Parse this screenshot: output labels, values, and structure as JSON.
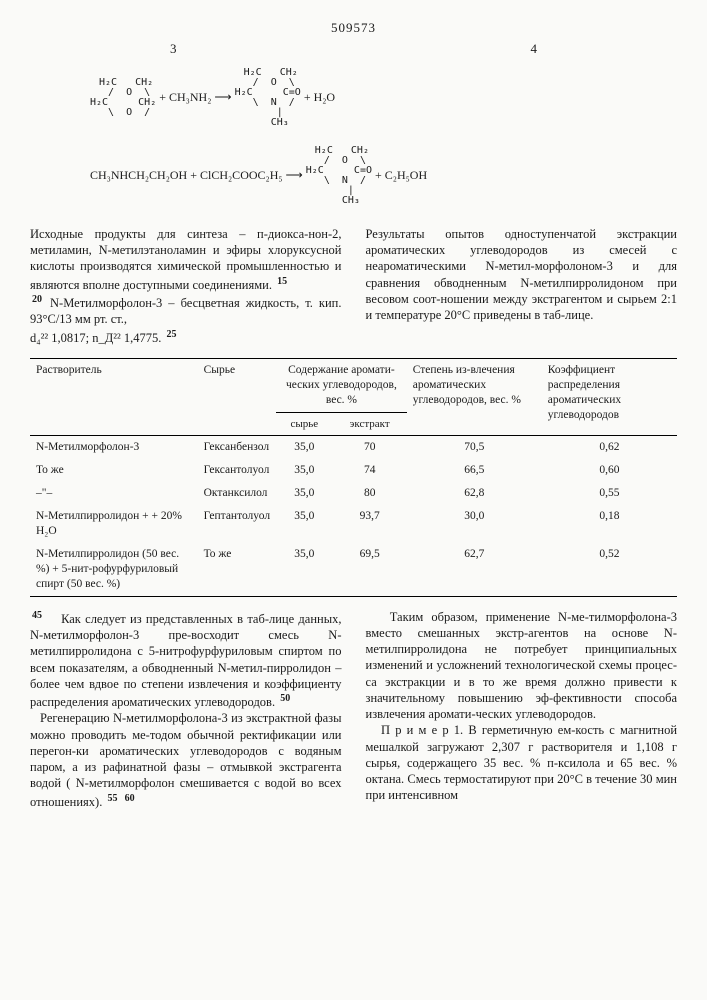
{
  "header": {
    "doc_number": "509573",
    "page_left": "3",
    "page_right": "4"
  },
  "reactions": {
    "reaction1": {
      "ring1": " H₂C   CH₂\n  /  O  \\\nH₂C     CH₂\n  \\  O  /",
      "plus1": " + CH₃NH₂ ⟶ ",
      "ring2": " H₂C   CH₂\n  /  O  \\\nH₂C     C=O\n  \\  N  /\n    |\n    CH₃",
      "plus2": " + H₂O"
    },
    "reaction2": {
      "left": "CH₃NHCH₂CH₂OH + ClCH₂COOC₂H₅ ⟶ ",
      "ring": " H₂C   CH₂\n  /  O  \\\nH₂C     C=O\n  \\  N  /\n    |\n    CH₃",
      "right": " + C₂H₅OH"
    }
  },
  "text_left_top": "Исходные продукты для синтеза – п-диокса-нон-2, метиламин, N-метилэтаноламин и эфиры хлоруксусной кислоты производятся химической промышленностью и являются вполне доступными соединениями.",
  "text_left_top2": "N-Метилморфолон-3 – бесцветная жидкость, т. кип. 93°C/13 мм рт. ст.,",
  "formula_d": "d₄²² 1,0817; ",
  "formula_n": "n_Д²² 1,4775.",
  "text_right_top": "Результаты опытов одноступенчатой экстракции ароматических углеводородов из смесей с неароматическими N-метил-морфолоном-3 и для сравнения обводненным N-метилпирролидоном при весовом соот-ношении между экстрагентом и сырьем 2:1 и температуре 20°C приведены в таб-лице.",
  "line15": "15",
  "line20": "20",
  "line25": "25",
  "table": {
    "headers": {
      "solvent": "Растворитель",
      "raw": "Сырье",
      "content": "Содержание аромати-ческих углеводородов, вес. %",
      "extraction": "Степень из-влечения ароматических углеводородов, вес. %",
      "coeff": "Коэффициент распределения ароматических углеводородов",
      "sub_raw": "сырье",
      "sub_extract": "экстракт"
    },
    "rows": [
      {
        "solvent": "N-Метилморфолон-3",
        "raw": "Гексанбензол",
        "c1": "35,0",
        "c2": "70",
        "c3": "70,5",
        "c4": "0,62"
      },
      {
        "solvent": "То же",
        "raw": "Гексантолуол",
        "c1": "35,0",
        "c2": "74",
        "c3": "66,5",
        "c4": "0,60"
      },
      {
        "solvent": "–\"–",
        "raw": "Октанксилол",
        "c1": "35,0",
        "c2": "80",
        "c3": "62,8",
        "c4": "0,55"
      },
      {
        "solvent": "N-Метилпирролидон + + 20% H₂O",
        "raw": "Гептантолуол",
        "c1": "35,0",
        "c2": "93,7",
        "c3": "30,0",
        "c4": "0,18"
      },
      {
        "solvent": "N-Метилпирролидон (50 вес. %) + 5-нит-рофурфуриловый спирт (50 вес. %)",
        "raw": "То же",
        "c1": "35,0",
        "c2": "69,5",
        "c3": "62,7",
        "c4": "0,52"
      }
    ]
  },
  "line45": "45",
  "line50": "50",
  "line55": "55",
  "line60": "60",
  "text_left_bottom1": "Как следует из представленных в таб-лице данных, N-метилморфолон-3 пре-восходит смесь N-метилпирролидона с 5-нитрофурфуриловым спиртом по всем показателям, а обводненный N-метил-пирролидон – более чем вдвое по степени извлечения и коэффициенту распределения ароматических углеводородов.",
  "text_left_bottom2": "Регенерацию N-метилморфолона-3 из экстрактной фазы можно проводить ме-тодом обычной ректификации или перегон-ки ароматических углеводородов с водяным паром, а из рафинатной фазы – отмывкой экстрагента водой ( N-метилморфолон смешивается с водой во всех отношениях).",
  "text_right_bottom1": "Таким образом, применение N-ме-тилморфолона-3 вместо смешанных экстр-агентов на основе N-метилпирролидона не потребует принципиальных изменений и усложнений технологической схемы процес-са экстракции и в то же время должно привести к значительному повышению эф-фективности способа извлечения аромати-ческих углеводородов.",
  "text_right_bottom2": "П р и м е р  1. В герметичную ем-кость с магнитной мешалкой загружают 2,307 г растворителя и 1,108 г сырья, содержащего 35 вес. % п-ксилола и 65 вес. % октана. Смесь термостатируют при 20°C в течение 30 мин при интенсивном"
}
